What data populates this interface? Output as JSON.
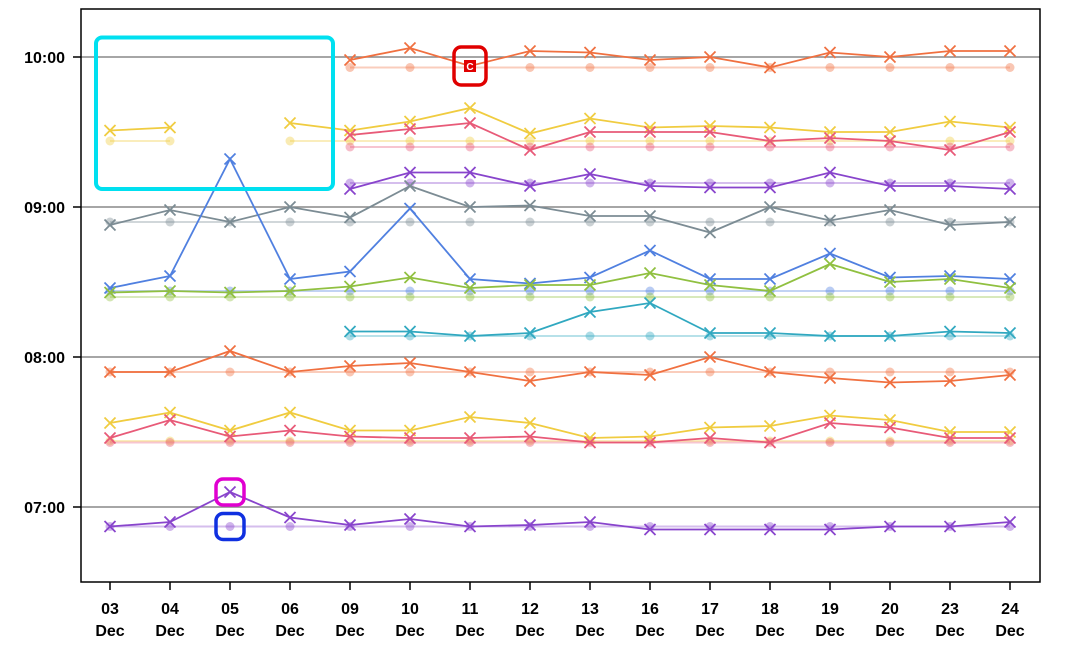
{
  "chart_data": {
    "type": "line",
    "y_unit": "time of day (hours)",
    "ylim": [
      6.5,
      10.35
    ],
    "y_ticks": [
      {
        "value": 7.0,
        "label": "07:00"
      },
      {
        "value": 8.0,
        "label": "08:00"
      },
      {
        "value": 9.0,
        "label": "09:00"
      },
      {
        "value": 10.0,
        "label": "10:00"
      }
    ],
    "categories": [
      {
        "day": "03",
        "month": "Dec"
      },
      {
        "day": "04",
        "month": "Dec"
      },
      {
        "day": "05",
        "month": "Dec"
      },
      {
        "day": "06",
        "month": "Dec"
      },
      {
        "day": "09",
        "month": "Dec"
      },
      {
        "day": "10",
        "month": "Dec"
      },
      {
        "day": "11",
        "month": "Dec"
      },
      {
        "day": "12",
        "month": "Dec"
      },
      {
        "day": "13",
        "month": "Dec"
      },
      {
        "day": "16",
        "month": "Dec"
      },
      {
        "day": "17",
        "month": "Dec"
      },
      {
        "day": "18",
        "month": "Dec"
      },
      {
        "day": "19",
        "month": "Dec"
      },
      {
        "day": "20",
        "month": "Dec"
      },
      {
        "day": "23",
        "month": "Dec"
      },
      {
        "day": "24",
        "month": "Dec"
      }
    ],
    "series": [
      {
        "color": "#f07040",
        "actual": [
          null,
          null,
          null,
          null,
          9.98,
          10.06,
          9.94,
          10.04,
          10.03,
          9.98,
          10.0,
          9.93,
          10.03,
          10.0,
          10.04,
          10.04
        ],
        "scheduled": [
          null,
          null,
          null,
          null,
          9.93,
          9.93,
          9.93,
          9.93,
          9.93,
          9.93,
          9.93,
          9.93,
          9.93,
          9.93,
          9.93,
          9.93
        ]
      },
      {
        "color": "#f0cc40",
        "actual": [
          9.51,
          9.53,
          null,
          9.56,
          9.51,
          9.57,
          9.66,
          9.49,
          9.59,
          9.53,
          9.54,
          9.53,
          9.5,
          9.5,
          9.57,
          9.53
        ],
        "scheduled": [
          9.44,
          9.44,
          null,
          9.44,
          9.44,
          9.44,
          9.44,
          9.44,
          9.44,
          9.44,
          9.44,
          9.44,
          9.44,
          9.44,
          9.44,
          9.44
        ]
      },
      {
        "color": "#e85a78",
        "actual": [
          null,
          null,
          null,
          null,
          9.48,
          9.52,
          9.56,
          9.38,
          9.5,
          9.5,
          9.5,
          9.44,
          9.46,
          9.44,
          9.38,
          9.5
        ],
        "scheduled": [
          null,
          null,
          null,
          null,
          9.4,
          9.4,
          9.4,
          9.4,
          9.4,
          9.4,
          9.4,
          9.4,
          9.4,
          9.4,
          9.4,
          9.4
        ]
      },
      {
        "color": "#8844cc",
        "actual": [
          null,
          null,
          null,
          null,
          9.12,
          9.23,
          9.23,
          9.14,
          9.22,
          9.14,
          9.13,
          9.13,
          9.23,
          9.14,
          9.14,
          9.12
        ],
        "scheduled": [
          null,
          null,
          null,
          null,
          9.16,
          9.16,
          9.16,
          9.16,
          9.16,
          9.16,
          9.16,
          9.16,
          9.16,
          9.16,
          9.16,
          9.16
        ]
      },
      {
        "color": "#7c8c94",
        "actual": [
          8.88,
          8.98,
          8.9,
          9.0,
          8.93,
          9.14,
          9.0,
          9.01,
          8.94,
          8.94,
          8.83,
          9.0,
          8.91,
          8.98,
          8.88,
          8.9
        ],
        "scheduled": [
          8.9,
          8.9,
          8.9,
          8.9,
          8.9,
          8.9,
          8.9,
          8.9,
          8.9,
          8.9,
          8.9,
          8.9,
          8.9,
          8.9,
          8.9,
          8.9
        ]
      },
      {
        "color": "#5080e0",
        "actual": [
          8.46,
          8.54,
          9.32,
          8.52,
          8.57,
          8.99,
          8.52,
          8.49,
          8.53,
          8.71,
          8.52,
          8.52,
          8.69,
          8.53,
          8.54,
          8.52
        ],
        "scheduled": [
          8.44,
          8.44,
          8.44,
          8.44,
          8.44,
          8.44,
          8.44,
          8.44,
          8.44,
          8.44,
          8.44,
          8.44,
          8.44,
          8.44,
          8.44,
          8.44
        ]
      },
      {
        "color": "#90c040",
        "actual": [
          8.43,
          8.44,
          8.43,
          8.44,
          8.47,
          8.53,
          8.46,
          8.48,
          8.48,
          8.56,
          8.48,
          8.44,
          8.62,
          8.5,
          8.52,
          8.46
        ],
        "scheduled": [
          8.4,
          8.4,
          8.4,
          8.4,
          8.4,
          8.4,
          8.4,
          8.4,
          8.4,
          8.4,
          8.4,
          8.4,
          8.4,
          8.4,
          8.4,
          8.4
        ]
      },
      {
        "color": "#30a8c0",
        "actual": [
          null,
          null,
          null,
          null,
          8.17,
          8.17,
          8.14,
          8.16,
          8.3,
          8.36,
          8.16,
          8.16,
          8.14,
          8.14,
          8.17,
          8.16
        ],
        "scheduled": [
          null,
          null,
          null,
          null,
          8.14,
          8.14,
          8.14,
          8.14,
          8.14,
          8.14,
          8.14,
          8.14,
          8.14,
          8.14,
          8.14,
          8.14
        ]
      },
      {
        "color": "#f07040",
        "actual": [
          7.9,
          7.9,
          8.04,
          7.9,
          7.94,
          7.96,
          7.9,
          7.84,
          7.9,
          7.88,
          8.0,
          7.9,
          7.86,
          7.83,
          7.84,
          7.88
        ],
        "scheduled": [
          7.9,
          7.9,
          7.9,
          7.9,
          7.9,
          7.9,
          7.9,
          7.9,
          7.9,
          7.9,
          7.9,
          7.9,
          7.9,
          7.9,
          7.9,
          7.9
        ]
      },
      {
        "color": "#f0cc40",
        "actual": [
          7.56,
          7.63,
          7.51,
          7.63,
          7.51,
          7.51,
          7.6,
          7.56,
          7.46,
          7.47,
          7.53,
          7.54,
          7.61,
          7.58,
          7.5,
          7.5
        ],
        "scheduled": [
          7.44,
          7.44,
          7.44,
          7.44,
          7.44,
          7.44,
          7.44,
          7.44,
          7.44,
          7.44,
          7.44,
          7.44,
          7.44,
          7.44,
          7.44,
          7.44
        ]
      },
      {
        "color": "#e85a78",
        "actual": [
          7.46,
          7.58,
          7.47,
          7.51,
          7.47,
          7.46,
          7.46,
          7.47,
          7.43,
          7.43,
          7.46,
          7.43,
          7.56,
          7.53,
          7.46,
          7.46
        ],
        "scheduled": [
          7.43,
          7.43,
          7.43,
          7.43,
          7.43,
          7.43,
          7.43,
          7.43,
          7.43,
          7.43,
          7.43,
          7.43,
          7.43,
          7.43,
          7.43,
          7.43
        ]
      },
      {
        "color": "#8844cc",
        "actual": [
          6.87,
          6.9,
          7.1,
          6.93,
          6.88,
          6.92,
          6.87,
          6.88,
          6.9,
          6.85,
          6.85,
          6.85,
          6.85,
          6.87,
          6.87,
          6.9
        ],
        "scheduled": [
          6.87,
          6.87,
          6.87,
          6.87,
          6.87,
          6.87,
          6.87,
          6.87,
          6.87,
          6.87,
          6.87,
          6.87,
          6.87,
          6.87,
          6.87,
          6.87
        ]
      }
    ],
    "grid": "horizontal",
    "legend": "none"
  },
  "annotations": [
    {
      "type": "highlight-box",
      "color": "#00e0f0",
      "from": {
        "category": "03",
        "y": 10.13
      },
      "to": {
        "category": "06",
        "y": 9.12
      }
    },
    {
      "type": "highlight-box",
      "color": "#e000d0",
      "at": {
        "category": "05",
        "y": 7.1
      }
    },
    {
      "type": "highlight-box",
      "color": "#1030e0",
      "at": {
        "category": "05",
        "y": 6.87
      }
    },
    {
      "type": "highlight-box",
      "color": "#e00000",
      "at": {
        "category": "11",
        "y": 9.94
      },
      "label": "C"
    }
  ]
}
